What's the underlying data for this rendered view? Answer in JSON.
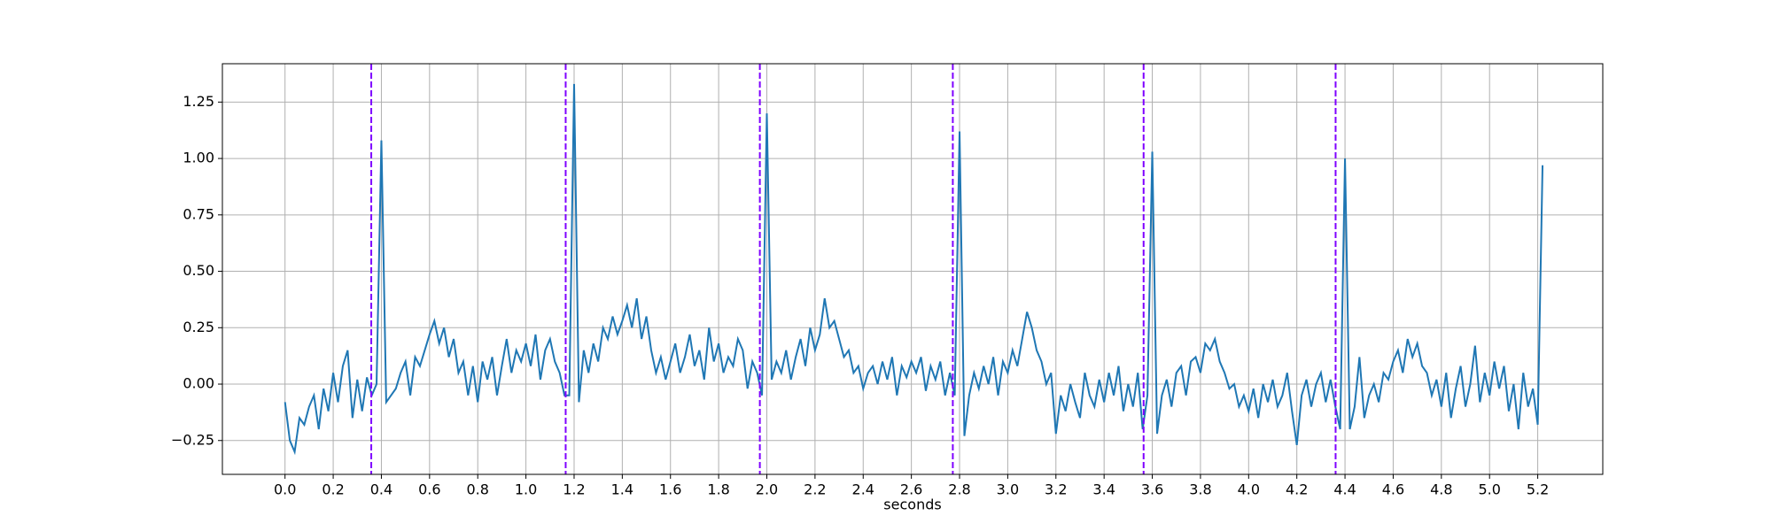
{
  "chart_data": {
    "type": "line",
    "xlabel": "seconds",
    "xlim": [
      -0.26,
      5.47
    ],
    "ylim": [
      -0.4,
      1.42
    ],
    "xticks": [
      {
        "value": 0,
        "label": "0.0"
      },
      0.2,
      0.4,
      0.6,
      0.8,
      {
        "value": 1,
        "label": "1.0"
      },
      1.2,
      1.4,
      1.6,
      1.8,
      {
        "value": 2,
        "label": "2.0"
      },
      2.2,
      2.4,
      2.6,
      2.8,
      {
        "value": 3,
        "label": "3.0"
      },
      3.2,
      3.4,
      3.6,
      3.8,
      {
        "value": 4,
        "label": "4.0"
      },
      4.2,
      4.4,
      4.6,
      4.8,
      {
        "value": 5,
        "label": "5.0"
      },
      5.2
    ],
    "yticks": [
      {
        "value": -0.25,
        "label": "−0.25"
      },
      {
        "value": 0,
        "label": "0.00"
      },
      0.25,
      {
        "value": 0.5,
        "label": "0.50"
      },
      0.75,
      {
        "value": 1,
        "label": "1.00"
      },
      1.25
    ],
    "grid": true,
    "vlines": [
      0.358,
      1.165,
      1.971,
      2.772,
      3.564,
      4.361
    ],
    "vline_color": "#7f00ff",
    "vline_style": "dashed",
    "x": [
      0.0,
      0.02,
      0.04,
      0.06,
      0.08,
      0.1,
      0.12,
      0.14,
      0.16,
      0.18,
      0.2,
      0.22,
      0.24,
      0.26,
      0.28,
      0.3,
      0.32,
      0.34,
      0.36,
      0.38,
      0.4,
      0.42,
      0.44,
      0.46,
      0.48,
      0.5,
      0.52,
      0.54,
      0.56,
      0.58,
      0.6,
      0.62,
      0.64,
      0.66,
      0.68,
      0.7,
      0.72,
      0.74,
      0.76,
      0.78,
      0.8,
      0.82,
      0.84,
      0.86,
      0.88,
      0.9,
      0.92,
      0.94,
      0.96,
      0.98,
      1.0,
      1.02,
      1.04,
      1.06,
      1.08,
      1.1,
      1.12,
      1.14,
      1.16,
      1.18,
      1.2,
      1.22,
      1.24,
      1.26,
      1.28,
      1.3,
      1.32,
      1.34,
      1.36,
      1.38,
      1.4,
      1.42,
      1.44,
      1.46,
      1.48,
      1.5,
      1.52,
      1.54,
      1.56,
      1.58,
      1.6,
      1.62,
      1.64,
      1.66,
      1.68,
      1.7,
      1.72,
      1.74,
      1.76,
      1.78,
      1.8,
      1.82,
      1.84,
      1.86,
      1.88,
      1.9,
      1.92,
      1.94,
      1.96,
      1.98,
      2.0,
      2.02,
      2.04,
      2.06,
      2.08,
      2.1,
      2.12,
      2.14,
      2.16,
      2.18,
      2.2,
      2.22,
      2.24,
      2.26,
      2.28,
      2.3,
      2.32,
      2.34,
      2.36,
      2.38,
      2.4,
      2.42,
      2.44,
      2.46,
      2.48,
      2.5,
      2.52,
      2.54,
      2.56,
      2.58,
      2.6,
      2.62,
      2.64,
      2.66,
      2.68,
      2.7,
      2.72,
      2.74,
      2.76,
      2.78,
      2.8,
      2.82,
      2.84,
      2.86,
      2.88,
      2.9,
      2.92,
      2.94,
      2.96,
      2.98,
      3.0,
      3.02,
      3.04,
      3.06,
      3.08,
      3.1,
      3.12,
      3.14,
      3.16,
      3.18,
      3.2,
      3.22,
      3.24,
      3.26,
      3.28,
      3.3,
      3.32,
      3.34,
      3.36,
      3.38,
      3.4,
      3.42,
      3.44,
      3.46,
      3.48,
      3.5,
      3.52,
      3.54,
      3.56,
      3.58,
      3.6,
      3.62,
      3.64,
      3.66,
      3.68,
      3.7,
      3.72,
      3.74,
      3.76,
      3.78,
      3.8,
      3.82,
      3.84,
      3.86,
      3.88,
      3.9,
      3.92,
      3.94,
      3.96,
      3.98,
      4.0,
      4.02,
      4.04,
      4.06,
      4.08,
      4.1,
      4.12,
      4.14,
      4.16,
      4.18,
      4.2,
      4.22,
      4.24,
      4.26,
      4.28,
      4.3,
      4.32,
      4.34,
      4.36,
      4.38,
      4.4,
      4.42,
      4.44,
      4.46,
      4.48,
      4.5,
      4.52,
      4.54,
      4.56,
      4.58,
      4.6,
      4.62,
      4.64,
      4.66,
      4.68,
      4.7,
      4.72,
      4.74,
      4.76,
      4.78,
      4.8,
      4.82,
      4.84,
      4.86,
      4.88,
      4.9,
      4.92,
      4.94,
      4.96,
      4.98,
      5.0,
      5.02,
      5.04,
      5.06,
      5.08,
      5.1,
      5.12,
      5.14,
      5.16,
      5.18,
      5.2,
      5.22
    ],
    "series": [
      {
        "color": "#1f77b4",
        "values": [
          -0.08,
          -0.25,
          -0.3,
          -0.15,
          -0.18,
          -0.1,
          -0.05,
          -0.2,
          -0.02,
          -0.12,
          0.05,
          -0.08,
          0.08,
          0.15,
          -0.15,
          0.02,
          -0.12,
          0.03,
          -0.05,
          0.0,
          1.08,
          -0.08,
          -0.05,
          -0.02,
          0.05,
          0.1,
          -0.05,
          0.12,
          0.08,
          0.15,
          0.22,
          0.28,
          0.18,
          0.25,
          0.12,
          0.2,
          0.05,
          0.1,
          -0.05,
          0.08,
          -0.08,
          0.1,
          0.02,
          0.12,
          -0.05,
          0.08,
          0.2,
          0.05,
          0.15,
          0.1,
          0.18,
          0.08,
          0.22,
          0.02,
          0.15,
          0.2,
          0.1,
          0.05,
          -0.05,
          -0.05,
          1.33,
          -0.08,
          0.15,
          0.05,
          0.18,
          0.1,
          0.25,
          0.2,
          0.3,
          0.22,
          0.28,
          0.35,
          0.25,
          0.38,
          0.2,
          0.3,
          0.15,
          0.05,
          0.12,
          0.02,
          0.1,
          0.18,
          0.05,
          0.12,
          0.22,
          0.08,
          0.15,
          0.02,
          0.25,
          0.1,
          0.18,
          0.05,
          0.12,
          0.08,
          0.2,
          0.15,
          -0.02,
          0.1,
          0.05,
          -0.05,
          1.2,
          0.02,
          0.1,
          0.05,
          0.15,
          0.02,
          0.12,
          0.2,
          0.08,
          0.25,
          0.15,
          0.22,
          0.38,
          0.25,
          0.28,
          0.2,
          0.12,
          0.15,
          0.05,
          0.08,
          -0.02,
          0.05,
          0.08,
          0.0,
          0.1,
          0.02,
          0.12,
          -0.05,
          0.08,
          0.03,
          0.1,
          0.05,
          0.12,
          -0.03,
          0.08,
          0.02,
          0.1,
          -0.05,
          0.05,
          -0.05,
          1.12,
          -0.23,
          -0.05,
          0.05,
          -0.02,
          0.08,
          0.0,
          0.12,
          -0.05,
          0.1,
          0.05,
          0.15,
          0.08,
          0.2,
          0.32,
          0.25,
          0.15,
          0.1,
          0.0,
          0.05,
          -0.22,
          -0.05,
          -0.12,
          0.0,
          -0.08,
          -0.15,
          0.05,
          -0.05,
          -0.1,
          0.02,
          -0.08,
          0.05,
          -0.05,
          0.08,
          -0.12,
          0.0,
          -0.1,
          0.05,
          -0.2,
          -0.05,
          1.03,
          -0.22,
          -0.05,
          0.02,
          -0.1,
          0.05,
          0.08,
          -0.05,
          0.1,
          0.12,
          0.05,
          0.18,
          0.15,
          0.2,
          0.1,
          0.05,
          -0.02,
          0.0,
          -0.1,
          -0.05,
          -0.12,
          -0.02,
          -0.15,
          0.0,
          -0.08,
          0.02,
          -0.1,
          -0.05,
          0.05,
          -0.12,
          -0.27,
          -0.05,
          0.02,
          -0.1,
          0.0,
          0.05,
          -0.08,
          0.02,
          -0.1,
          -0.2,
          1.0,
          -0.2,
          -0.1,
          0.12,
          -0.15,
          -0.05,
          0.0,
          -0.08,
          0.05,
          0.02,
          0.1,
          0.15,
          0.05,
          0.2,
          0.12,
          0.18,
          0.08,
          0.05,
          -0.05,
          0.02,
          -0.1,
          0.05,
          -0.15,
          -0.02,
          0.08,
          -0.1,
          0.0,
          0.17,
          -0.08,
          0.05,
          -0.05,
          0.1,
          -0.02,
          0.08,
          -0.12,
          0.0,
          -0.2,
          0.05,
          -0.1,
          -0.02,
          -0.18,
          0.97
        ]
      }
    ]
  }
}
